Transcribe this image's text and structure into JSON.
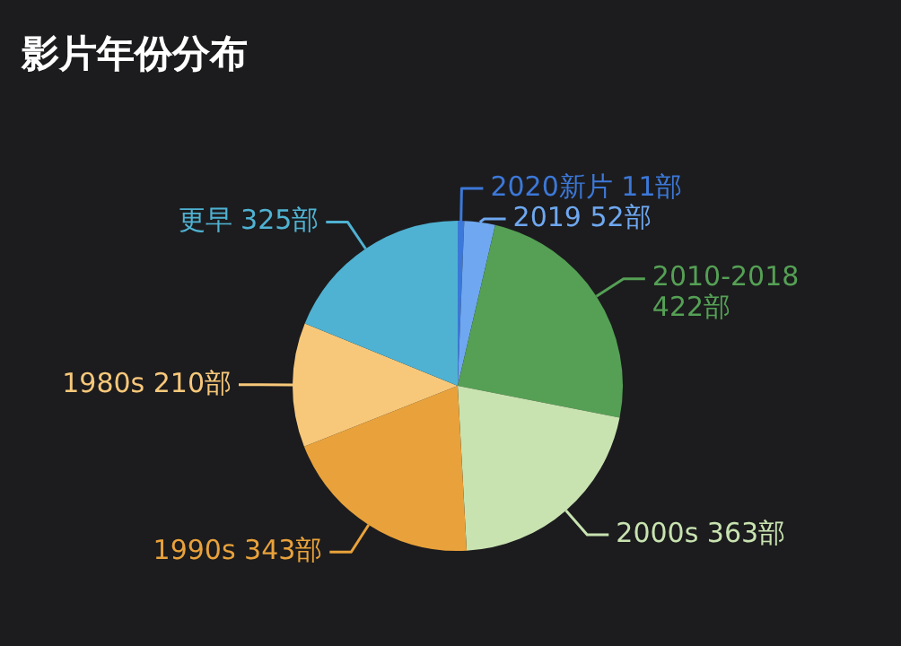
{
  "chart_data": {
    "type": "pie",
    "title": "影片年份分布",
    "categories": [
      "2020新片",
      "2019",
      "2010-2018",
      "2000s",
      "1990s",
      "1980s",
      "更早"
    ],
    "values": [
      11,
      52,
      422,
      363,
      343,
      210,
      325
    ],
    "value_labels": [
      "11部",
      "52部",
      "422部",
      "363部",
      "343部",
      "210部",
      "325部"
    ],
    "colors": [
      "#3c78d8",
      "#6fa8f0",
      "#55a055",
      "#c8e3b0",
      "#e9a23b",
      "#f8c87a",
      "#4fb2d2"
    ],
    "legend": false
  }
}
